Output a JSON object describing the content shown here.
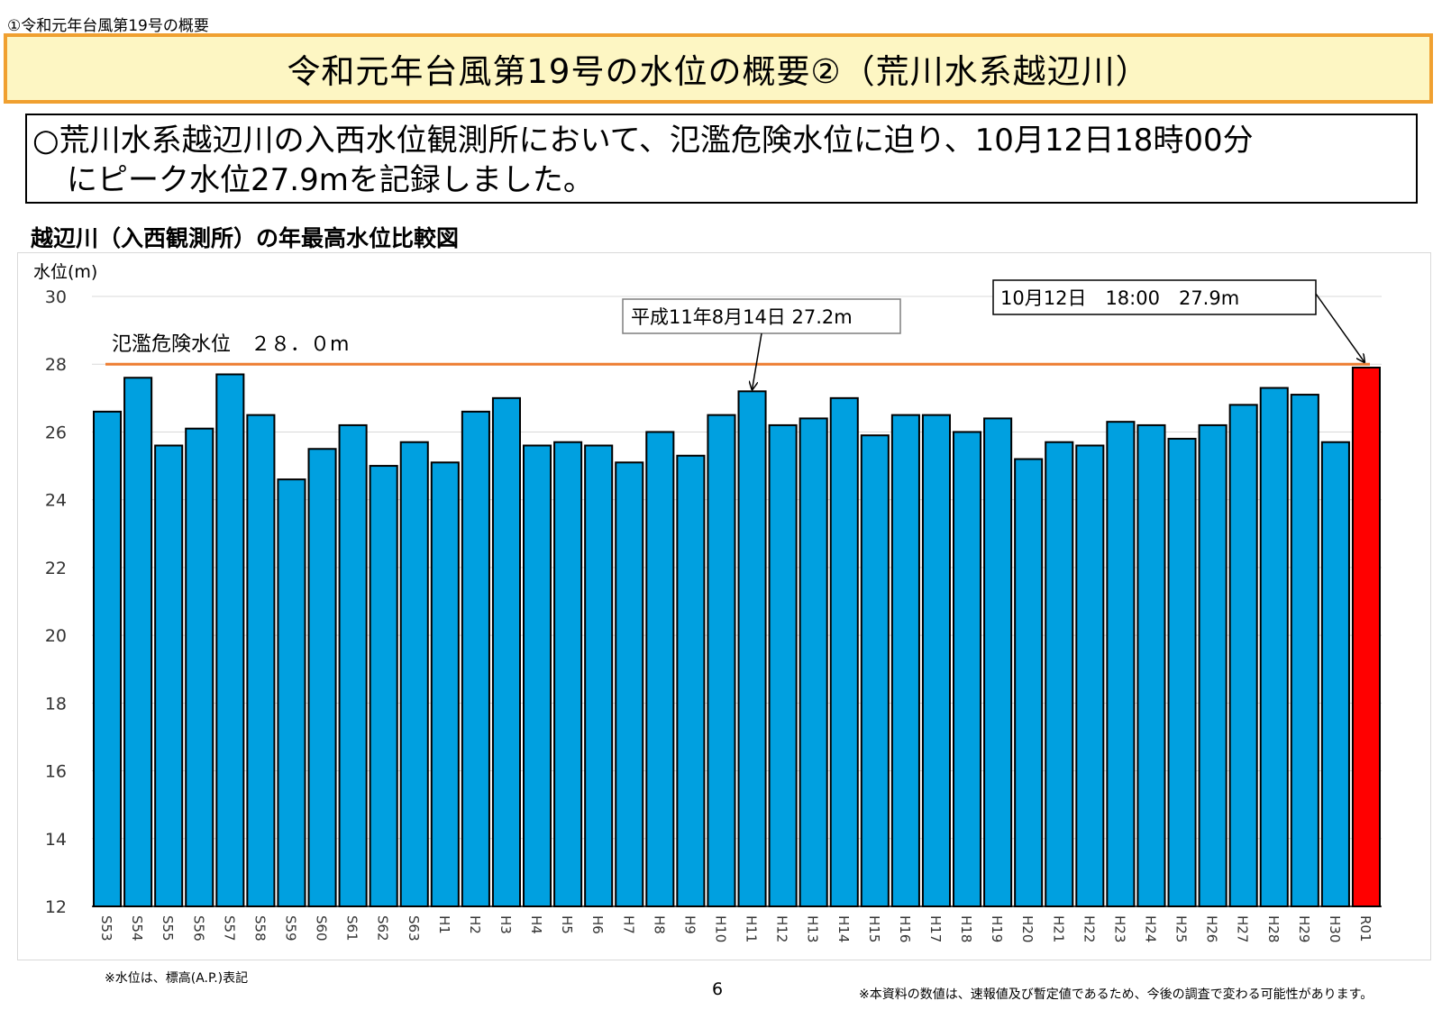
{
  "header": {
    "section_label": "①令和元年台風第19号の概要",
    "title": "令和元年台風第19号の水位の概要②（荒川水系越辺川）"
  },
  "summary": {
    "line1": "○荒川水系越辺川の入西水位観測所において、氾濫危険水位に迫り、10月12日18時00分",
    "line2": "にピーク水位27.9mを記録しました。"
  },
  "chart_data": {
    "type": "bar",
    "title": "越辺川（入西観測所）の年最高水位比較図",
    "ylabel": "水位(m)",
    "xlabel": "",
    "ylim": [
      12,
      30
    ],
    "yticks": [
      12,
      14,
      16,
      18,
      20,
      22,
      24,
      26,
      28,
      30
    ],
    "grid": true,
    "categories": [
      "S53",
      "S54",
      "S55",
      "S56",
      "S57",
      "S58",
      "S59",
      "S60",
      "S61",
      "S62",
      "S63",
      "H1",
      "H2",
      "H3",
      "H4",
      "H5",
      "H6",
      "H7",
      "H8",
      "H9",
      "H10",
      "H11",
      "H12",
      "H13",
      "H14",
      "H15",
      "H16",
      "H17",
      "H18",
      "H19",
      "H20",
      "H21",
      "H22",
      "H23",
      "H24",
      "H25",
      "H26",
      "H27",
      "H28",
      "H29",
      "H30",
      "R01"
    ],
    "values": [
      26.6,
      27.6,
      25.6,
      26.1,
      27.7,
      26.5,
      24.6,
      25.5,
      26.2,
      25.0,
      25.7,
      25.1,
      26.6,
      27.0,
      25.6,
      25.7,
      25.6,
      25.1,
      26.0,
      25.3,
      26.5,
      27.2,
      26.2,
      26.4,
      27.0,
      25.9,
      26.5,
      26.5,
      26.0,
      26.4,
      25.2,
      25.7,
      25.6,
      26.3,
      26.2,
      25.8,
      26.2,
      26.8,
      27.3,
      27.1,
      25.7,
      27.9
    ],
    "bar_color": "#00a0e0",
    "highlight_color": "#ff0000",
    "highlight_index": 41,
    "threshold": {
      "label": "氾濫危険水位　２８．０m",
      "value": 28.0,
      "color": "#ed7d31"
    },
    "annotations": [
      {
        "text": "平成11年8月14日 27.2m",
        "target_category": "H11",
        "value": 27.2
      },
      {
        "text": "10月12日　18:00　27.9m",
        "target_category": "R01",
        "value": 27.9
      }
    ]
  },
  "footer": {
    "note_left": "※水位は、標高(A.P.)表記",
    "page_number": "6",
    "note_right": "※本資料の数値は、速報値及び暫定値であるため、今後の調査で変わる可能性があります。"
  }
}
